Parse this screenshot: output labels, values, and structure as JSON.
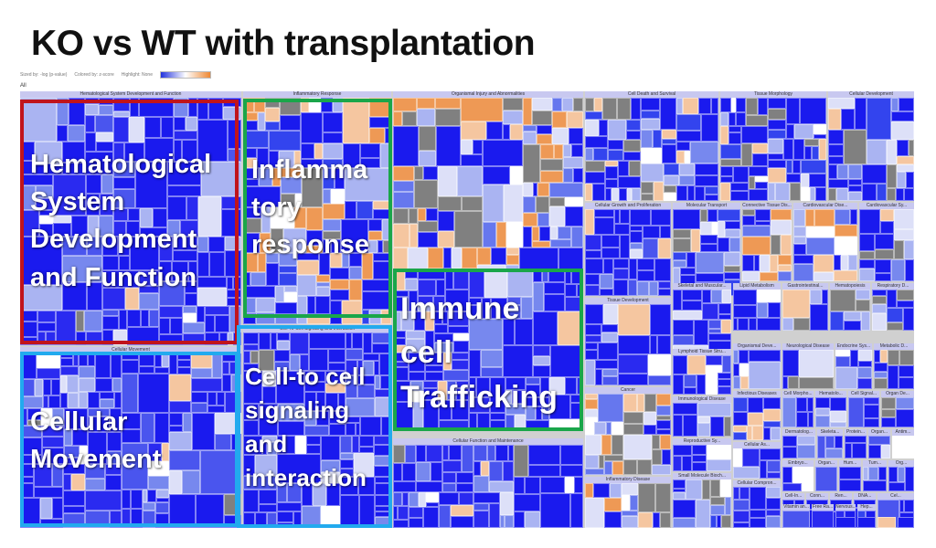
{
  "slide": {
    "title": "KO vs WT with transplantation"
  },
  "toolbar": {
    "sorted_by": "Sized by: -log (p-value)",
    "colored_by": "Colored by: z-score",
    "highlight": "Highlight: None"
  },
  "breadcrumb": {
    "all_label": "All"
  },
  "colors": {
    "blue": "#1a1aee",
    "orange": "#ee9955",
    "gray": "#808080",
    "red_box": "#c0141c",
    "green_box": "#1aa64a",
    "cyan_box": "#22aaee"
  },
  "regions": [
    {
      "name": "hematological",
      "header": "Hematological System Development and Function",
      "mix": "blue"
    },
    {
      "name": "inflammatory",
      "header": "Inflammatory Response",
      "mix": "blueOrange"
    },
    {
      "name": "organismal",
      "header": "Organismal Injury and Abnormalities",
      "mix": "mixed"
    },
    {
      "name": "cell-death",
      "header": "Cell Death and Survival",
      "mix": "blueGray"
    },
    {
      "name": "tissue-morph",
      "header": "Tissue Morphology",
      "mix": "blueGray"
    },
    {
      "name": "cellular-dev",
      "header": "Cellular Development",
      "mix": "blueGray"
    },
    {
      "name": "growth",
      "header": "Cellular Growth and Proliferation",
      "mix": "blue"
    },
    {
      "name": "mol-transport",
      "header": "Molecular Transport",
      "mix": "blueGray"
    },
    {
      "name": "connective",
      "header": "Connective Tissue Dis...",
      "mix": "mixed"
    },
    {
      "name": "cardio1",
      "header": "Cardiovascular Dise...",
      "mix": "mixed"
    },
    {
      "name": "cardio2",
      "header": "Cardiovascular Sy...",
      "mix": "blueGray"
    },
    {
      "name": "skeletal",
      "header": "Skeletal and Muscular...",
      "mix": "blue"
    },
    {
      "name": "lipid",
      "header": "Lipid Metabolism",
      "mix": "blue"
    },
    {
      "name": "gastro",
      "header": "Gastrointestinal...",
      "mix": "mixed"
    },
    {
      "name": "hemato2",
      "header": "Hematopoiesis",
      "mix": "blueGray"
    },
    {
      "name": "respiratory",
      "header": "Respiratory D...",
      "mix": "blueGray"
    },
    {
      "name": "tissue-dev",
      "header": "Tissue Development",
      "mix": "blue"
    },
    {
      "name": "lymphoid",
      "header": "Lymphoid Tissue Stru...",
      "mix": "blue"
    },
    {
      "name": "organismal-dev",
      "header": "Organismal Deve...",
      "mix": "blue"
    },
    {
      "name": "neuro",
      "header": "Neurological Disease",
      "mix": "blueGray"
    },
    {
      "name": "endocrine",
      "header": "Endocrine Sys...",
      "mix": "blue"
    },
    {
      "name": "metabolic",
      "header": "Metabolic D...",
      "mix": "blueGray"
    },
    {
      "name": "cancer",
      "header": "Cancer",
      "mix": "mixed"
    },
    {
      "name": "immuno",
      "header": "Immunological Disease",
      "mix": "blueGray"
    },
    {
      "name": "infectious",
      "header": "Infectious Diseases",
      "mix": "blueOrange"
    },
    {
      "name": "cell-morph",
      "header": "Cell Morpho...",
      "mix": "blue"
    },
    {
      "name": "hemato-sm",
      "header": "Hematolo...",
      "mix": "blue"
    },
    {
      "name": "cell-signal",
      "header": "Cell Signal...",
      "mix": "blue"
    },
    {
      "name": "organ-dev",
      "header": "Organ De...",
      "mix": "blueGray"
    },
    {
      "name": "reproductive",
      "header": "Reproductive Sy...",
      "mix": "blue"
    },
    {
      "name": "dermatology",
      "header": "Dermatolog...",
      "mix": "blue"
    },
    {
      "name": "skeletal-sm",
      "header": "Skeleta...",
      "mix": "blue"
    },
    {
      "name": "protein",
      "header": "Protein...",
      "mix": "blue"
    },
    {
      "name": "organ-sm",
      "header": "Organ...",
      "mix": "blue"
    },
    {
      "name": "antimicro",
      "header": "Antim...",
      "mix": "blueGray"
    },
    {
      "name": "inflam-disease",
      "header": "Inflammatory Disease",
      "mix": "mixed"
    },
    {
      "name": "small-molecule",
      "header": "Small Molecule Bioch...",
      "mix": "blueGray"
    },
    {
      "name": "cellular-assembly",
      "header": "Cellular As...",
      "mix": "blue"
    },
    {
      "name": "embryo",
      "header": "Embryo...",
      "mix": "blue"
    },
    {
      "name": "organ-xs",
      "header": "Organ...",
      "mix": "blue"
    },
    {
      "name": "hum",
      "header": "Hum...",
      "mix": "blue"
    },
    {
      "name": "tum",
      "header": "Tum...",
      "mix": "blue"
    },
    {
      "name": "org2",
      "header": "Org...",
      "mix": "blue"
    },
    {
      "name": "cellular-comp",
      "header": "Cellular Compron...",
      "mix": "blue"
    },
    {
      "name": "cell-in",
      "header": "Cell-In...",
      "mix": "blue"
    },
    {
      "name": "conn",
      "header": "Conn...",
      "mix": "blue"
    },
    {
      "name": "ren",
      "header": "Ren...",
      "mix": "blue"
    },
    {
      "name": "dna",
      "header": "DNA...",
      "mix": "blue"
    },
    {
      "name": "vitamin",
      "header": "Vitamin an...",
      "mix": "blue"
    },
    {
      "name": "free-ra",
      "header": "Free Ra...",
      "mix": "blue"
    },
    {
      "name": "nervous",
      "header": "Nervous...",
      "mix": "blue"
    },
    {
      "name": "hep",
      "header": "Hep...",
      "mix": "blueGray"
    },
    {
      "name": "cel",
      "header": "Cel...",
      "mix": "blue"
    },
    {
      "name": "hepat",
      "header": "Hepat...",
      "mix": "blue"
    },
    {
      "name": "ophth",
      "header": "Oph...",
      "mix": "blue"
    },
    {
      "name": "dis",
      "header": "Dis...",
      "mix": "blue"
    },
    {
      "name": "pos",
      "header": "Pos...",
      "mix": "blue"
    },
    {
      "name": "cell-cell",
      "header": "Cell-To-Cell Signaling and Interaction",
      "mix": "blue"
    },
    {
      "name": "cellular-movement",
      "header": "Cellular Movement",
      "mix": "blue"
    },
    {
      "name": "immune-trafficking",
      "header": "",
      "mix": "blue"
    },
    {
      "name": "func-maint",
      "header": "Cellular Function and Maintenance",
      "mix": "blue"
    }
  ],
  "overlay_labels": {
    "hematological": "Hematological System Development and Function",
    "inflammatory": "Inflamma tory response",
    "immune": "Immune cell Trafficking",
    "cellular_movement": "Cellular Movement",
    "cell_to_cell": "Cell-to cell signaling and interaction"
  }
}
